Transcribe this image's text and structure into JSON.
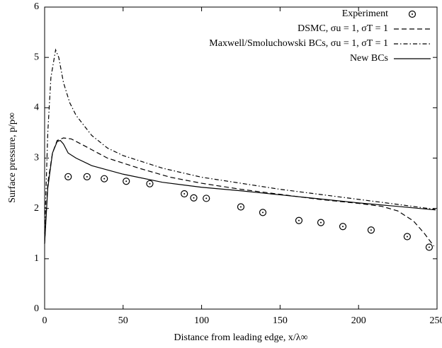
{
  "chart_data": {
    "type": "line",
    "xlabel": "Distance from leading edge, x/λ∞",
    "ylabel": "Surface pressure, p/p∞",
    "xlim": [
      0,
      250
    ],
    "ylim": [
      0,
      6
    ],
    "xticks": [
      0,
      50,
      100,
      150,
      200,
      250
    ],
    "yticks": [
      0,
      1,
      2,
      3,
      4,
      5,
      6
    ],
    "legend": "upper-right",
    "series": [
      {
        "name": "Experiment",
        "color": "#000000",
        "line_style": "none",
        "marker": "circle-dot",
        "x": [
          15,
          27,
          38,
          52,
          67,
          89,
          95,
          103,
          125,
          139,
          162,
          176,
          190,
          208,
          231,
          245
        ],
        "y": [
          2.63,
          2.63,
          2.59,
          2.54,
          2.49,
          2.29,
          2.21,
          2.2,
          2.03,
          1.92,
          1.76,
          1.72,
          1.64,
          1.57,
          1.44,
          1.23
        ]
      },
      {
        "name": "DSMC, σu = 1, σT = 1",
        "color": "#000000",
        "line_style": "dashed",
        "marker": "none",
        "x": [
          0,
          2,
          5,
          8,
          12,
          17,
          25,
          40,
          60,
          80,
          100,
          125,
          150,
          175,
          200,
          215,
          225,
          235,
          242,
          248
        ],
        "y": [
          1.3,
          2.5,
          3.1,
          3.35,
          3.4,
          3.38,
          3.25,
          3.0,
          2.8,
          2.62,
          2.5,
          2.38,
          2.28,
          2.18,
          2.1,
          2.04,
          1.95,
          1.75,
          1.5,
          1.25
        ]
      },
      {
        "name": "Maxwell/Smoluchowski BCs, σu = 1, σT = 1",
        "color": "#000000",
        "line_style": "dash-dot",
        "marker": "none",
        "x": [
          0,
          2,
          4,
          7,
          9,
          12,
          16,
          20,
          30,
          40,
          50,
          75,
          100,
          125,
          150,
          175,
          200,
          225,
          249
        ],
        "y": [
          1.5,
          3.5,
          4.6,
          5.15,
          5.0,
          4.5,
          4.1,
          3.85,
          3.45,
          3.2,
          3.05,
          2.8,
          2.62,
          2.5,
          2.38,
          2.28,
          2.18,
          2.08,
          1.98
        ]
      },
      {
        "name": "New BCs",
        "color": "#000000",
        "line_style": "solid",
        "marker": "none",
        "x": [
          0,
          2,
          5,
          8,
          10,
          12,
          15,
          20,
          30,
          50,
          75,
          100,
          125,
          150,
          175,
          200,
          225,
          249
        ],
        "y": [
          1.3,
          2.4,
          3.1,
          3.33,
          3.35,
          3.28,
          3.1,
          3.0,
          2.85,
          2.68,
          2.52,
          2.42,
          2.35,
          2.27,
          2.19,
          2.11,
          2.04,
          1.97
        ]
      }
    ]
  }
}
